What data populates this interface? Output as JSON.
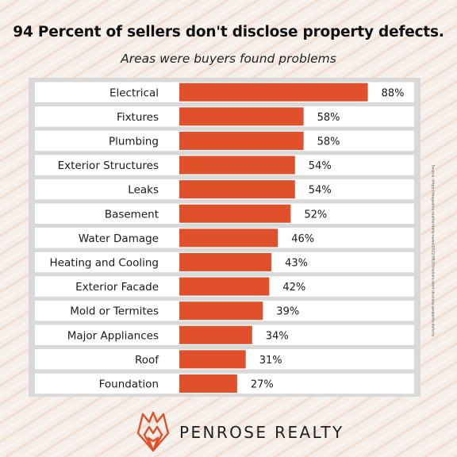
{
  "title": "94 Percent of sellers don't disclose property defects.",
  "subtitle": "Areas were buyers found problems",
  "source": "Source: https://magazine.realtor/daily-news/2022/08/25/sellers-dont-disclose-property-defects",
  "brand": {
    "name": "PENROSE REALTY",
    "logo_icon": "flame-diamond-logo"
  },
  "colors": {
    "bar": "#e0502b",
    "background": "#f6efe9",
    "panel": "#d9d9d9",
    "row": "#ffffff",
    "logo": "#e0502b"
  },
  "chart_data": {
    "type": "bar",
    "orientation": "horizontal",
    "categories": [
      "Electrical",
      "Fixtures",
      "Plumbing",
      "Exterior Structures",
      "Leaks",
      "Basement",
      "Water Damage",
      "Heating and Cooling",
      "Exterior Facade",
      "Mold or Termites",
      "Major Appliances",
      "Roof",
      "Foundation"
    ],
    "values": [
      88,
      58,
      58,
      54,
      54,
      52,
      46,
      43,
      42,
      39,
      34,
      31,
      27
    ],
    "value_labels": [
      "88%",
      "58%",
      "58%",
      "54%",
      "54%",
      "52%",
      "46%",
      "43%",
      "42%",
      "39%",
      "34%",
      "31%",
      "27%"
    ],
    "title": "94 Percent of sellers don't disclose property defects.",
    "subtitle": "Areas were buyers found problems",
    "xlim": [
      0,
      100
    ],
    "unit": "%",
    "grid": false,
    "legend": "none"
  }
}
